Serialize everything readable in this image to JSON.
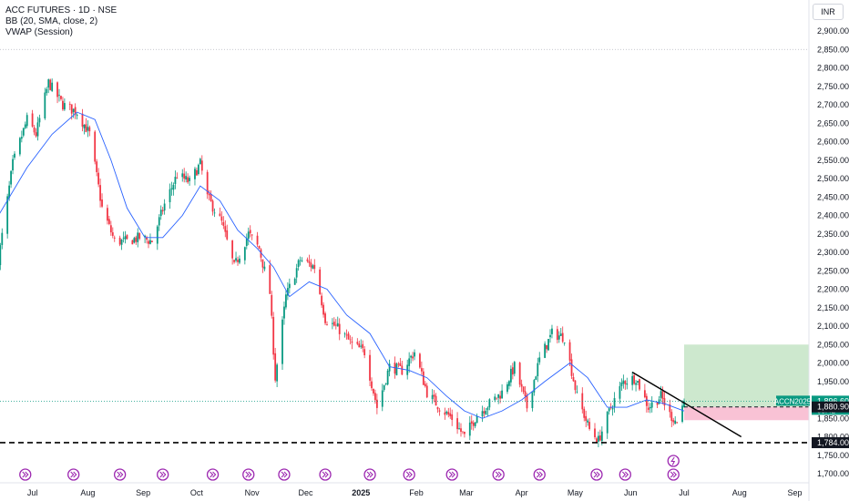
{
  "legend": {
    "symbol_line": "ACC FUTURES · 1D · NSE",
    "bb_line": "BB (20, SMA, close, 2)",
    "vwap_line": "VWAP (Session)"
  },
  "currency": "INR",
  "colors": {
    "up": "#089981",
    "down": "#f23645",
    "bb_basis": "#2962ff",
    "trendline": "#000000",
    "level": "#000000",
    "target_zone": "#c8e6c9",
    "stop_zone": "#f8bbd0",
    "event": "#9c27b0"
  },
  "chart_data": {
    "type": "candlestick",
    "title": "ACC FUTURES · 1D · NSE",
    "xlabel": "",
    "ylabel": "",
    "ylim": [
      1700,
      2900
    ],
    "x_ticks": [
      "Jul",
      "Aug",
      "Sep",
      "Oct",
      "Nov",
      "Dec",
      "2025",
      "Feb",
      "Mar",
      "Apr",
      "May",
      "Jun",
      "Jul",
      "Aug",
      "Sep"
    ],
    "y_ticks": [
      "2,900.00",
      "2,850.00",
      "2,800.00",
      "2,750.00",
      "2,700.00",
      "2,650.00",
      "2,600.00",
      "2,550.00",
      "2,500.00",
      "2,450.00",
      "2,400.00",
      "2,350.00",
      "2,300.00",
      "2,250.00",
      "2,200.00",
      "2,150.00",
      "2,100.00",
      "2,050.00",
      "2,000.00",
      "1,950.00",
      "1,900.00",
      "1,850.00",
      "1,800.00",
      "1,750.00",
      "1,700.00"
    ],
    "close_path": [
      [
        "2024-06-12",
        2280
      ],
      [
        "2024-06-20",
        2540
      ],
      [
        "2024-06-28",
        2660
      ],
      [
        "2024-07-03",
        2620
      ],
      [
        "2024-07-10",
        2760
      ],
      [
        "2024-07-18",
        2700
      ],
      [
        "2024-07-26",
        2680
      ],
      [
        "2024-08-02",
        2620
      ],
      [
        "2024-08-09",
        2420
      ],
      [
        "2024-08-16",
        2330
      ],
      [
        "2024-08-23",
        2330
      ],
      [
        "2024-08-30",
        2340
      ],
      [
        "2024-09-06",
        2330
      ],
      [
        "2024-09-13",
        2430
      ],
      [
        "2024-09-20",
        2510
      ],
      [
        "2024-09-27",
        2490
      ],
      [
        "2024-10-03",
        2540
      ],
      [
        "2024-10-07",
        2450
      ],
      [
        "2024-10-15",
        2380
      ],
      [
        "2024-10-22",
        2260
      ],
      [
        "2024-10-30",
        2350
      ],
      [
        "2024-11-05",
        2310
      ],
      [
        "2024-11-11",
        2190
      ],
      [
        "2024-11-14",
        1960
      ],
      [
        "2024-11-20",
        2180
      ],
      [
        "2024-11-28",
        2280
      ],
      [
        "2024-12-06",
        2260
      ],
      [
        "2024-12-12",
        2120
      ],
      [
        "2024-12-20",
        2090
      ],
      [
        "2024-12-27",
        2050
      ],
      [
        "2025-01-03",
        2030
      ],
      [
        "2025-01-10",
        1880
      ],
      [
        "2025-01-17",
        1990
      ],
      [
        "2025-01-24",
        1980
      ],
      [
        "2025-01-31",
        2030
      ],
      [
        "2025-02-07",
        1920
      ],
      [
        "2025-02-14",
        1880
      ],
      [
        "2025-02-21",
        1850
      ],
      [
        "2025-02-28",
        1800
      ],
      [
        "2025-03-07",
        1860
      ],
      [
        "2025-03-14",
        1890
      ],
      [
        "2025-03-21",
        1920
      ],
      [
        "2025-03-28",
        1990
      ],
      [
        "2025-04-04",
        1880
      ],
      [
        "2025-04-11",
        2010
      ],
      [
        "2025-04-18",
        2080
      ],
      [
        "2025-04-25",
        2070
      ],
      [
        "2025-05-02",
        1910
      ],
      [
        "2025-05-09",
        1820
      ],
      [
        "2025-05-14",
        1790
      ],
      [
        "2025-05-21",
        1880
      ],
      [
        "2025-05-28",
        1950
      ],
      [
        "2025-06-04",
        1960
      ],
      [
        "2025-06-11",
        1880
      ],
      [
        "2025-06-18",
        1910
      ],
      [
        "2025-06-23",
        1860
      ],
      [
        "2025-06-27",
        1840
      ],
      [
        "2025-07-01",
        1896.6
      ]
    ],
    "bb_basis_path": [
      [
        "2024-06-12",
        2400
      ],
      [
        "2024-06-28",
        2530
      ],
      [
        "2024-07-12",
        2620
      ],
      [
        "2024-07-26",
        2680
      ],
      [
        "2024-08-05",
        2660
      ],
      [
        "2024-08-14",
        2550
      ],
      [
        "2024-08-23",
        2420
      ],
      [
        "2024-09-02",
        2340
      ],
      [
        "2024-09-12",
        2340
      ],
      [
        "2024-09-23",
        2400
      ],
      [
        "2024-10-03",
        2480
      ],
      [
        "2024-10-14",
        2440
      ],
      [
        "2024-10-24",
        2360
      ],
      [
        "2024-11-04",
        2310
      ],
      [
        "2024-11-13",
        2260
      ],
      [
        "2024-11-22",
        2180
      ],
      [
        "2024-12-03",
        2220
      ],
      [
        "2024-12-13",
        2200
      ],
      [
        "2024-12-24",
        2130
      ],
      [
        "2025-01-06",
        2080
      ],
      [
        "2025-01-17",
        1990
      ],
      [
        "2025-01-28",
        1980
      ],
      [
        "2025-02-07",
        1960
      ],
      [
        "2025-02-18",
        1910
      ],
      [
        "2025-02-28",
        1870
      ],
      [
        "2025-03-10",
        1850
      ],
      [
        "2025-03-21",
        1870
      ],
      [
        "2025-04-01",
        1900
      ],
      [
        "2025-04-14",
        1950
      ],
      [
        "2025-04-28",
        2000
      ],
      [
        "2025-05-08",
        1960
      ],
      [
        "2025-05-19",
        1880
      ],
      [
        "2025-05-30",
        1880
      ],
      [
        "2025-06-10",
        1900
      ],
      [
        "2025-06-20",
        1890
      ],
      [
        "2025-07-01",
        1870
      ]
    ],
    "last_price": 1896.6,
    "last_price_label": "1,896.60",
    "symbol_label": "ACCN2025",
    "countdown": "05:42",
    "trendline": [
      [
        "2025-06-02",
        1975
      ],
      [
        "2025-08-02",
        1800
      ]
    ],
    "position": {
      "entry": 1880.9,
      "entry_label": "1,880.90",
      "target": 2050,
      "stop": 1845,
      "start": "2025-07-01",
      "end": "2025-10-01"
    },
    "support_level": 1784,
    "support_label": "1,784.00",
    "event_dates": [
      "2024-06-27",
      "2024-07-24",
      "2024-08-19",
      "2024-09-12",
      "2024-10-10",
      "2024-10-30",
      "2024-11-19",
      "2024-12-12",
      "2025-01-06",
      "2025-01-28",
      "2025-02-21",
      "2025-03-19",
      "2025-04-11",
      "2025-05-13",
      "2025-05-29",
      "2025-06-25"
    ],
    "dividend_date": "2025-06-25"
  }
}
